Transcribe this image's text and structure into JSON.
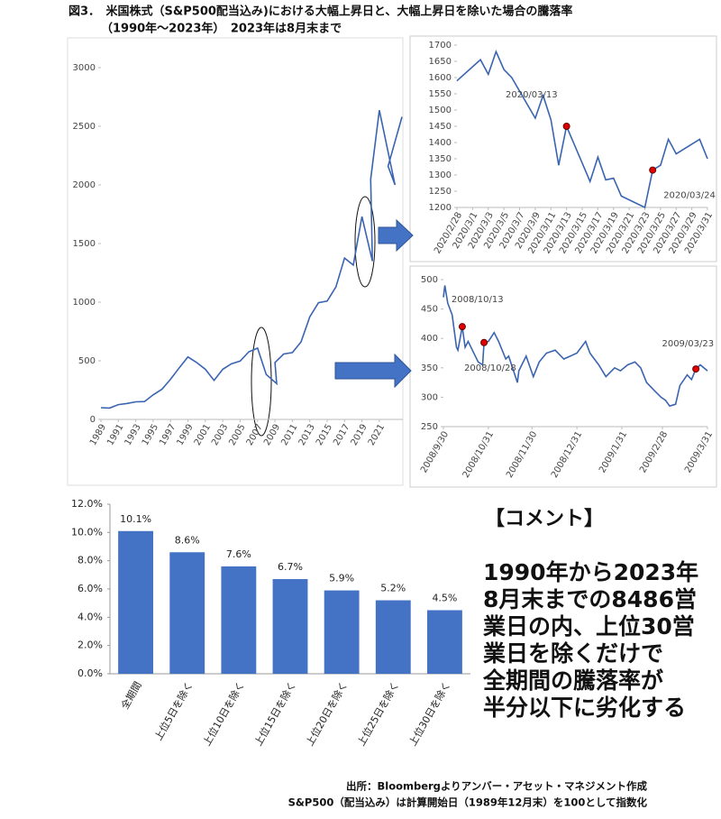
{
  "header": {
    "title": "図3．　米国株式（S&P500配当込み)における大幅上昇日と、大幅上昇日を除いた場合の騰落率",
    "subtitle": "（1990年～2023年）　2023年は8月末まで"
  },
  "chart_data": [
    {
      "type": "line",
      "color": "#3a64b0",
      "x": [
        1989,
        1990,
        1991,
        1992,
        1993,
        1994,
        1995,
        1996,
        1997,
        1998,
        1999,
        2000,
        2001,
        2002,
        2003,
        2004,
        2005,
        2006,
        2007,
        2008,
        2009.2,
        2009,
        2010,
        2011,
        2012,
        2013,
        2014,
        2015,
        2016,
        2017,
        2018,
        2019,
        2020.2,
        2020,
        2021,
        2022.8,
        2022,
        2023.6
      ],
      "values": [
        100,
        97,
        126,
        136,
        150,
        152,
        209,
        257,
        342,
        440,
        533,
        485,
        427,
        333,
        428,
        475,
        498,
        577,
        608,
        383,
        305,
        485,
        558,
        570,
        661,
        875,
        995,
        1009,
        1129,
        1376,
        1316,
        1730,
        1350,
        2049,
        2637,
        2000,
        2159,
        2580
      ],
      "xlim": [
        1989,
        2023.7
      ],
      "xticks": [
        1989,
        1991,
        1993,
        1995,
        1997,
        1999,
        2001,
        2003,
        2005,
        2007,
        2009,
        2011,
        2013,
        2015,
        2017,
        2019,
        2021
      ],
      "ylim": [
        0,
        3000
      ],
      "yticks": [
        0,
        500,
        1000,
        1500,
        2000,
        2500,
        3000
      ]
    },
    {
      "type": "line",
      "color": "#3a64b0",
      "x": [
        "2020/2/28",
        "2020/3/2",
        "2020/3/3",
        "2020/3/4",
        "2020/3/5",
        "2020/3/6",
        "2020/3/9",
        "2020/3/10",
        "2020/3/11",
        "2020/3/12",
        "2020/3/13",
        "2020/3/16",
        "2020/3/17",
        "2020/3/18",
        "2020/3/19",
        "2020/3/20",
        "2020/3/23",
        "2020/3/24",
        "2020/3/25",
        "2020/3/26",
        "2020/3/27",
        "2020/3/30",
        "2020/3/31"
      ],
      "values": [
        1590,
        1655,
        1610,
        1680,
        1625,
        1600,
        1475,
        1545,
        1470,
        1330,
        1450,
        1280,
        1355,
        1285,
        1290,
        1235,
        1200,
        1315,
        1330,
        1410,
        1365,
        1410,
        1350
      ],
      "xlim": [
        "2020/2/28",
        "2020/3/31"
      ],
      "xticks": [
        "2020/2/28",
        "2020/3/1",
        "2020/3/3",
        "2020/3/5",
        "2020/3/7",
        "2020/3/9",
        "2020/3/11",
        "2020/3/13",
        "2020/3/15",
        "2020/3/17",
        "2020/3/19",
        "2020/3/21",
        "2020/3/23",
        "2020/3/25",
        "2020/3/27",
        "2020/3/29",
        "2020/3/31"
      ],
      "ylim": [
        1200,
        1700
      ],
      "yticks": [
        1200,
        1250,
        1300,
        1350,
        1400,
        1450,
        1500,
        1550,
        1600,
        1650,
        1700
      ],
      "annotations": [
        {
          "x": "2020/3/13",
          "text": "2020/03/13"
        },
        {
          "x": "2020/3/24",
          "text": "2020/03/24"
        }
      ]
    },
    {
      "type": "line",
      "color": "#3a64b0",
      "x": [
        "2008/9/30",
        "2008/10/1",
        "2008/10/3",
        "2008/10/6",
        "2008/10/9",
        "2008/10/10",
        "2008/10/13",
        "2008/10/15",
        "2008/10/17",
        "2008/10/22",
        "2008/10/24",
        "2008/10/27",
        "2008/10/28",
        "2008/10/31",
        "2008/11/4",
        "2008/11/7",
        "2008/11/12",
        "2008/11/14",
        "2008/11/20",
        "2008/11/21",
        "2008/11/26",
        "2008/12/1",
        "2008/12/5",
        "2008/12/10",
        "2008/12/16",
        "2008/12/22",
        "2008/12/31",
        "2009/1/6",
        "2009/1/9",
        "2009/1/15",
        "2009/1/20",
        "2009/1/26",
        "2009/1/30",
        "2009/2/4",
        "2009/2/9",
        "2009/2/13",
        "2009/2/17",
        "2009/2/23",
        "2009/2/27",
        "2009/3/2",
        "2009/3/5",
        "2009/3/9",
        "2009/3/12",
        "2009/3/17",
        "2009/3/20",
        "2009/3/23",
        "2009/3/26",
        "2009/3/31"
      ],
      "values": [
        470,
        490,
        460,
        440,
        385,
        380,
        420,
        385,
        395,
        370,
        360,
        355,
        393,
        395,
        410,
        395,
        365,
        370,
        325,
        345,
        370,
        335,
        360,
        375,
        380,
        365,
        375,
        395,
        375,
        355,
        335,
        350,
        345,
        355,
        360,
        350,
        325,
        310,
        300,
        295,
        285,
        288,
        320,
        338,
        330,
        348,
        355,
        345
      ],
      "xlim": [
        "2008/9/30",
        "2009/3/31"
      ],
      "xticks": [
        "2008/9/30",
        "2008/10/31",
        "2008/11/30",
        "2008/12/31",
        "2009/1/31",
        "2009/2/28",
        "2009/3/31"
      ],
      "ylim": [
        250,
        500
      ],
      "yticks": [
        250,
        300,
        350,
        400,
        450,
        500
      ],
      "annotations": [
        {
          "x": "2008/10/13",
          "text": "2008/10/13"
        },
        {
          "x": "2008/10/28",
          "text": "2008/10/28"
        },
        {
          "x": "2009/3/23",
          "text": "2009/03/23"
        }
      ]
    },
    {
      "type": "bar",
      "color": "#4472c4",
      "categories": [
        "全期間",
        "上位5日を除く",
        "上位10日を除く",
        "上位15日を除く",
        "上位20日を除く",
        "上位25日を除く",
        "上位30日を除く"
      ],
      "values": [
        10.1,
        8.6,
        7.6,
        6.7,
        5.9,
        5.2,
        4.5
      ],
      "value_labels": [
        "10.1%",
        "8.6%",
        "7.6%",
        "6.7%",
        "5.9%",
        "5.2%",
        "4.5%"
      ],
      "ylim": [
        0,
        12
      ],
      "yticks": [
        {
          "value": 0,
          "label": "0.0%"
        },
        {
          "value": 2,
          "label": "2.0%"
        },
        {
          "value": 4,
          "label": "4.0%"
        },
        {
          "value": 6,
          "label": "6.0%"
        },
        {
          "value": 8,
          "label": "8.0%"
        },
        {
          "value": 10,
          "label": "10.0%"
        },
        {
          "value": 12,
          "label": "12.0%"
        }
      ]
    }
  ],
  "comment": {
    "heading": "【コメント】",
    "lines": [
      "1990年から2023年",
      "8月末までの8486営",
      "業日の内、上位30営",
      "業日を除くだけで",
      "全期間の騰落率が",
      "半分以下に劣化する"
    ]
  },
  "footer": {
    "lines": [
      "出所：Bloombergよりアンバー・アセット・マネジメント作成",
      "S&P500（配当込み）は計算開始日（1989年12月末）を100として指数化"
    ]
  }
}
